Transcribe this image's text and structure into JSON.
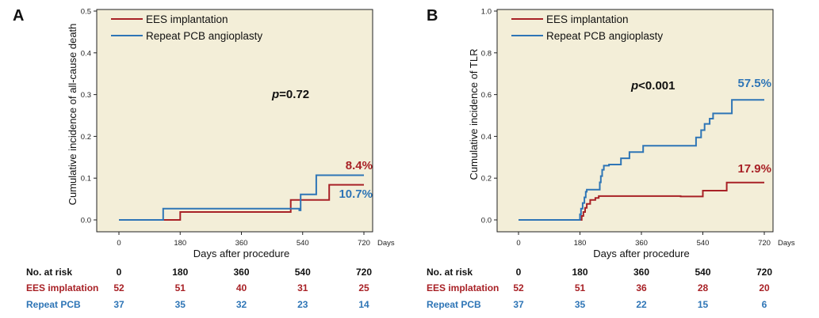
{
  "colors": {
    "ees": "#a82126",
    "pcb": "#2e75b6",
    "plot_bg": "#f3eed8",
    "frame": "#222222"
  },
  "chart_data": [
    {
      "type": "line",
      "step": true,
      "panel_label": "A",
      "ylabel": "Cumulative incidence of all-cause death",
      "xlabel": "Days after procedure",
      "x_unit": "Days",
      "xlim": [
        0,
        720
      ],
      "ylim": [
        0,
        0.5
      ],
      "x_ticks": [
        0,
        180,
        360,
        540,
        720
      ],
      "x_tick_labels": [
        "0",
        "180",
        "360",
        "540",
        "720"
      ],
      "y_ticks": [
        0,
        0.1,
        0.2,
        0.3,
        0.4,
        0.5
      ],
      "y_tick_labels": [
        "0.0",
        "0.1",
        "0.2",
        "0.3",
        "0.4",
        "0.5"
      ],
      "legend": [
        "EES implantation",
        "Repeat PCB angioplasty"
      ],
      "annotation_p": {
        "symbol": "p",
        "text": "=0.72"
      },
      "series": [
        {
          "name": "EES implantation",
          "color_key": "ees",
          "x": [
            0,
            180,
            505,
            618,
            720
          ],
          "y": [
            0,
            0.019,
            0.048,
            0.084,
            0.084
          ],
          "end_label": "8.4%"
        },
        {
          "name": "Repeat PCB angioplasty",
          "color_key": "pcb",
          "x": [
            0,
            130,
            530,
            534,
            580,
            720
          ],
          "y": [
            0,
            0.027,
            0.023,
            0.061,
            0.107,
            0.107
          ],
          "end_label": "10.7%"
        }
      ],
      "risk_table": {
        "header_label": "No. at risk",
        "times": [
          "0",
          "180",
          "360",
          "540",
          "720"
        ],
        "rows": [
          {
            "label": "EES implatation",
            "color_key": "ees",
            "values": [
              "52",
              "51",
              "40",
              "31",
              "25"
            ]
          },
          {
            "label": "Repeat PCB",
            "color_key": "pcb",
            "values": [
              "37",
              "35",
              "32",
              "23",
              "14"
            ]
          }
        ]
      }
    },
    {
      "type": "line",
      "step": true,
      "panel_label": "B",
      "ylabel": "Cumulative incidence of TLR",
      "xlabel": "Days after procedure",
      "x_unit": "Days",
      "xlim": [
        0,
        720
      ],
      "ylim": [
        0,
        1.0
      ],
      "x_ticks": [
        0,
        180,
        360,
        540,
        720
      ],
      "x_tick_labels": [
        "0",
        "180",
        "360",
        "540",
        "720"
      ],
      "y_ticks": [
        0,
        0.2,
        0.4,
        0.6,
        0.8,
        1.0
      ],
      "y_tick_labels": [
        "0.0",
        "0.2",
        "0.4",
        "0.6",
        "0.8",
        "1.0"
      ],
      "legend": [
        "EES implantation",
        "Repeat PCB angioplasty"
      ],
      "annotation_p": {
        "symbol": "p",
        "text": "<0.001"
      },
      "series": [
        {
          "name": "EES implantation",
          "color_key": "ees",
          "x": [
            0,
            185,
            190,
            195,
            200,
            210,
            225,
            235,
            250,
            475,
            540,
            610,
            720
          ],
          "y": [
            0,
            0.019,
            0.038,
            0.058,
            0.077,
            0.096,
            0.105,
            0.114,
            0.114,
            0.112,
            0.14,
            0.179,
            0.179
          ],
          "end_label": "17.9%"
        },
        {
          "name": "Repeat PCB angioplasty",
          "color_key": "pcb",
          "x": [
            0,
            180,
            183,
            188,
            193,
            197,
            200,
            238,
            241,
            245,
            250,
            265,
            300,
            325,
            365,
            520,
            535,
            545,
            560,
            570,
            625,
            720
          ],
          "y": [
            0,
            0.027,
            0.054,
            0.081,
            0.108,
            0.135,
            0.145,
            0.18,
            0.21,
            0.24,
            0.26,
            0.265,
            0.295,
            0.325,
            0.355,
            0.395,
            0.43,
            0.46,
            0.485,
            0.51,
            0.575,
            0.575
          ],
          "end_label": "57.5%"
        }
      ],
      "risk_table": {
        "header_label": "No. at risk",
        "times": [
          "0",
          "180",
          "360",
          "540",
          "720"
        ],
        "rows": [
          {
            "label": "EES implatation",
            "color_key": "ees",
            "values": [
              "52",
              "51",
              "36",
              "28",
              "20"
            ]
          },
          {
            "label": "Repeat PCB",
            "color_key": "pcb",
            "values": [
              "37",
              "35",
              "22",
              "15",
              "6"
            ]
          }
        ]
      }
    }
  ]
}
